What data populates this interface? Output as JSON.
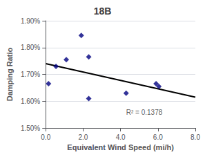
{
  "chart_data": {
    "type": "scatter",
    "title": "18B",
    "xlabel": "Equivalent Wind Speed (mi/h)",
    "ylabel": "Damping Ratio",
    "xlim": [
      0,
      8.0
    ],
    "ylim": [
      0.015,
      0.019
    ],
    "xticks": [
      {
        "value": 0.0,
        "label": "0.0"
      },
      {
        "value": 2.0,
        "label": "2.0"
      },
      {
        "value": 4.0,
        "label": "4.0"
      },
      {
        "value": 6.0,
        "label": "6.0"
      },
      {
        "value": 8.0,
        "label": "8.0"
      }
    ],
    "yticks": [
      {
        "value": 0.015,
        "label": "1.50%"
      },
      {
        "value": 0.016,
        "label": "1.60%"
      },
      {
        "value": 0.017,
        "label": "1.70%"
      },
      {
        "value": 0.018,
        "label": "1.80%"
      },
      {
        "value": 0.019,
        "label": "1.90%"
      }
    ],
    "grid": "y",
    "series": [
      {
        "type": "scatter",
        "color": "#000080",
        "marker": "diamond",
        "x": [
          0.15,
          0.55,
          1.1,
          1.9,
          2.3,
          2.3,
          4.3,
          5.9,
          6.05
        ],
        "values": [
          0.01665,
          0.0173,
          0.01755,
          0.01845,
          0.01765,
          0.0161,
          0.0163,
          0.01665,
          0.01655
        ]
      },
      {
        "type": "line",
        "color": "black",
        "line_style": "solid",
        "x": [
          0.0,
          8.0
        ],
        "values": [
          0.0174,
          0.01615
        ]
      }
    ],
    "annotations": [
      {
        "text": "R² = 0.1378",
        "x": 4.3,
        "y": 0.01545
      }
    ]
  }
}
